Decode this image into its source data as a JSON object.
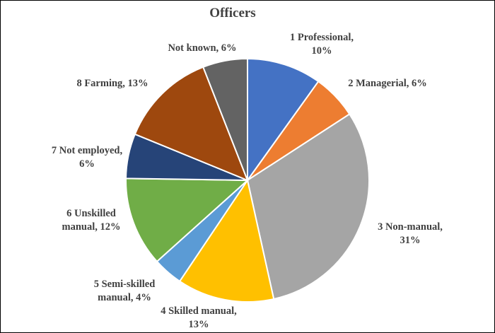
{
  "chart_data": {
    "type": "pie",
    "title": "Officers",
    "slices": [
      {
        "category": "1 Professional",
        "value": 10,
        "label_lines": [
          "1 Professional,",
          "10%"
        ],
        "color": "#4472C4"
      },
      {
        "category": "2 Managerial",
        "value": 6,
        "label_lines": [
          "2 Managerial, 6%"
        ],
        "color": "#ED7D31"
      },
      {
        "category": "3 Non-manual",
        "value": 31,
        "label_lines": [
          "3 Non-manual,",
          "31%"
        ],
        "color": "#A5A5A5"
      },
      {
        "category": "4 Skilled manual",
        "value": 13,
        "label_lines": [
          "4 Skilled manual,",
          "13%"
        ],
        "color": "#FFC000"
      },
      {
        "category": "5 Semi-skilled manual",
        "value": 4,
        "label_lines": [
          "5 Semi-skilled",
          "manual, 4%"
        ],
        "color": "#5B9BD5"
      },
      {
        "category": "6 Unskilled manual",
        "value": 12,
        "label_lines": [
          "6 Unskilled",
          "manual, 12%"
        ],
        "color": "#70AD47"
      },
      {
        "category": "7 Not employed",
        "value": 6,
        "label_lines": [
          "7 Not employed,",
          "6%"
        ],
        "color": "#264478"
      },
      {
        "category": "8 Farming",
        "value": 13,
        "label_lines": [
          "8 Farming, 13%"
        ],
        "color": "#9E480E"
      },
      {
        "category": "Not known",
        "value": 6,
        "label_lines": [
          "Not known, 6%"
        ],
        "color": "#636363"
      }
    ],
    "legend": "none"
  }
}
